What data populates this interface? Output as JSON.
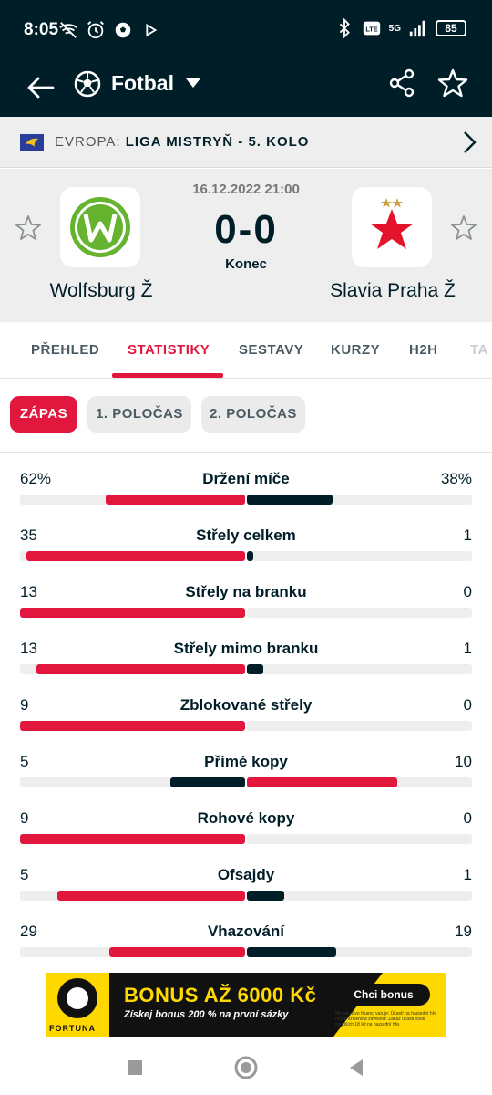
{
  "status_bar": {
    "time": "8:05",
    "battery": "85",
    "network": "5G"
  },
  "app_bar": {
    "title": "Fotbal"
  },
  "league": {
    "country": "EVROPA:",
    "name": "LIGA MISTRYŇ - 5. KOLO"
  },
  "match": {
    "datetime": "16.12.2022 21:00",
    "score": "0-0",
    "status": "Konec",
    "home_team": "Wolfsburg Ž",
    "away_team": "Slavia Praha Ž"
  },
  "tabs": [
    {
      "label": "PŘEHLED"
    },
    {
      "label": "STATISTIKY"
    },
    {
      "label": "SESTAVY"
    },
    {
      "label": "KURZY"
    },
    {
      "label": "H2H"
    },
    {
      "label": "TA"
    }
  ],
  "periods": [
    {
      "label": "ZÁPAS"
    },
    {
      "label": "1. POLOČAS"
    },
    {
      "label": "2. POLOČAS"
    }
  ],
  "colors": {
    "accent": "#e2173d",
    "dark": "#001e28",
    "track": "#eeeeef"
  },
  "stats": [
    {
      "label": "Držení míče",
      "home": "62%",
      "away": "38%",
      "home_share": 0.62,
      "away_share": 0.38,
      "leader": "home"
    },
    {
      "label": "Střely celkem",
      "home": "35",
      "away": "1",
      "home_share": 0.972,
      "away_share": 0.028,
      "leader": "home"
    },
    {
      "label": "Střely na branku",
      "home": "13",
      "away": "0",
      "home_share": 1.0,
      "away_share": 0.0,
      "leader": "home"
    },
    {
      "label": "Střely mimo branku",
      "home": "13",
      "away": "1",
      "home_share": 0.929,
      "away_share": 0.071,
      "leader": "home"
    },
    {
      "label": "Zblokované střely",
      "home": "9",
      "away": "0",
      "home_share": 1.0,
      "away_share": 0.0,
      "leader": "home"
    },
    {
      "label": "Přímé kopy",
      "home": "5",
      "away": "10",
      "home_share": 0.333,
      "away_share": 0.667,
      "leader": "away"
    },
    {
      "label": "Rohové kopy",
      "home": "9",
      "away": "0",
      "home_share": 1.0,
      "away_share": 0.0,
      "leader": "home"
    },
    {
      "label": "Ofsajdy",
      "home": "5",
      "away": "1",
      "home_share": 0.833,
      "away_share": 0.167,
      "leader": "home"
    },
    {
      "label": "Vhazování",
      "home": "29",
      "away": "19",
      "home_share": 0.604,
      "away_share": 0.396,
      "leader": "home"
    }
  ],
  "ad": {
    "headline": "BONUS AŽ 6000 Kč",
    "subline": "Získej bonus 200 % na první sázky",
    "button": "Chci bonus",
    "brand": "FORTUNA",
    "badge": "zh",
    "legal": "Ministerstvo financí varuje: Účastí na hazardní hře může vzniknout závislost! Zákaz účasti osob mladších 18 let na hazardní hře."
  }
}
